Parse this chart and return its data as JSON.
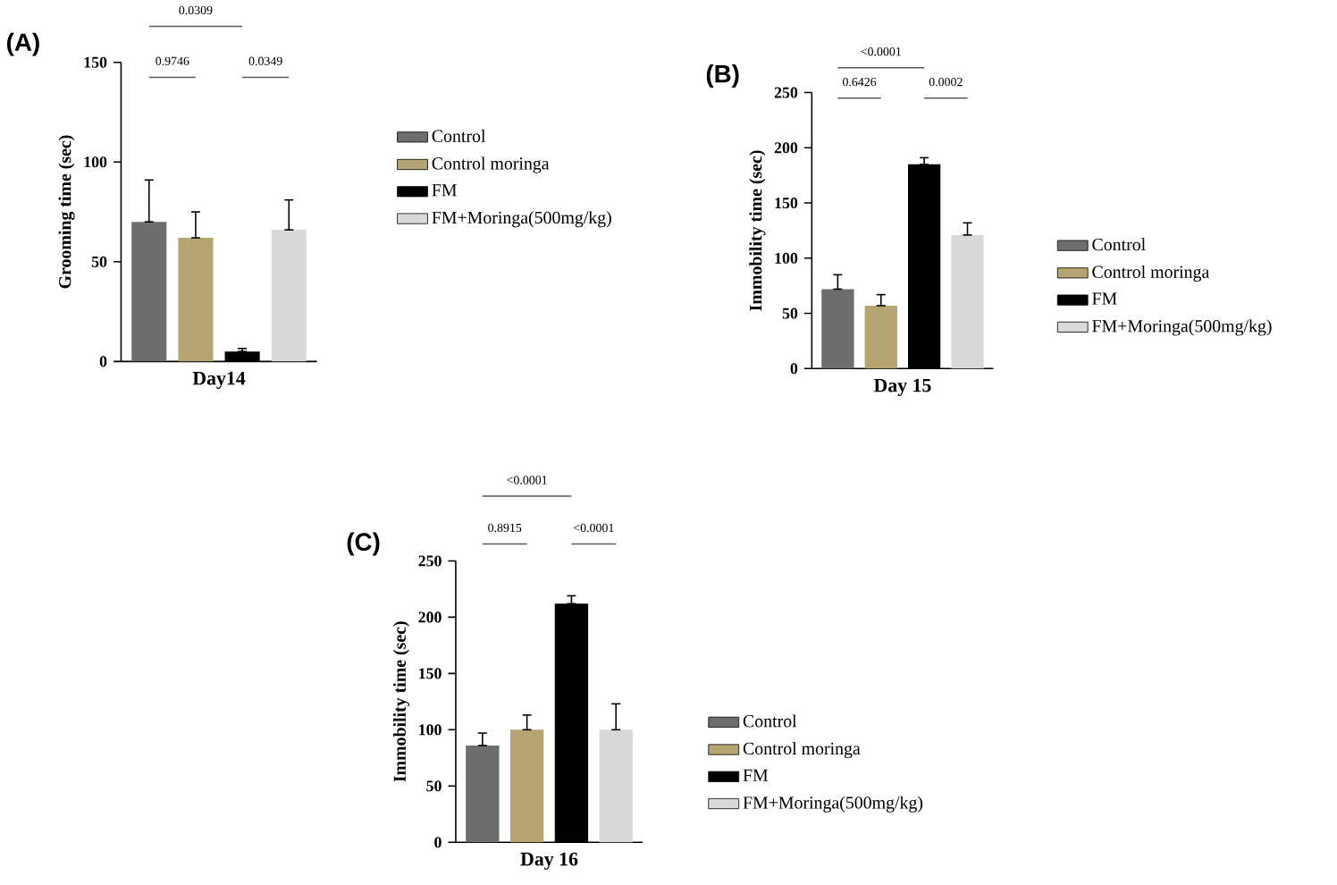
{
  "chart_data": [
    {
      "type": "bar",
      "title": "(A)",
      "xlabel": "Day14",
      "ylabel": "Grooming time (sec)",
      "categories": [
        null
      ],
      "ylim": [
        0,
        150
      ],
      "yticks": [
        0,
        50,
        100,
        150
      ],
      "legend": "right",
      "series": [
        {
          "name": "Control",
          "color": "#6d6d6d",
          "values": [
            70
          ],
          "errors": [
            [
              70,
              91
            ]
          ]
        },
        {
          "name": "Control moringa",
          "color": "#b5a575",
          "values": [
            62
          ],
          "errors": [
            [
              62,
              75
            ]
          ]
        },
        {
          "name": "FM",
          "color": "#000000",
          "values": [
            5
          ],
          "errors": [
            [
              5,
              6.5
            ]
          ]
        },
        {
          "name": "FM+Moringa(500mg/kg)",
          "color": "#d9d9d9",
          "values": [
            66
          ],
          "errors": [
            [
              66,
              81
            ]
          ]
        }
      ],
      "annotations": [
        "0.0309",
        "0.9746",
        "0.0349"
      ]
    },
    {
      "type": "bar",
      "title": "(B)",
      "xlabel": "Day 15",
      "ylabel": "Immobility time (sec)",
      "categories": [
        null
      ],
      "ylim": [
        0,
        250
      ],
      "yticks": [
        0,
        50,
        100,
        150,
        200,
        250
      ],
      "legend": "right",
      "series": [
        {
          "name": "Control",
          "color": "#6d6d6d",
          "values": [
            72
          ],
          "errors": [
            [
              72,
              85
            ]
          ]
        },
        {
          "name": "Control moringa",
          "color": "#b5a575",
          "values": [
            57
          ],
          "errors": [
            [
              57,
              67
            ]
          ]
        },
        {
          "name": "FM",
          "color": "#000000",
          "values": [
            185
          ],
          "errors": [
            [
              185,
              191
            ]
          ]
        },
        {
          "name": "FM+Moringa(500mg/kg)",
          "color": "#d9d9d9",
          "values": [
            121
          ],
          "errors": [
            [
              121,
              132
            ]
          ]
        }
      ],
      "annotations": [
        "<0.0001",
        "0.6426",
        "0.0002"
      ]
    },
    {
      "type": "bar",
      "title": "(C)",
      "xlabel": "Day 16",
      "ylabel": "Immobility time (sec)",
      "categories": [
        null
      ],
      "ylim": [
        0,
        250
      ],
      "yticks": [
        0,
        50,
        100,
        150,
        200,
        250
      ],
      "legend": "right",
      "series": [
        {
          "name": "Control",
          "color": "#6d6d6d",
          "values": [
            86
          ],
          "errors": [
            [
              86,
              97
            ]
          ]
        },
        {
          "name": "Control moringa",
          "color": "#b5a575",
          "values": [
            100
          ],
          "errors": [
            [
              100,
              113
            ]
          ]
        },
        {
          "name": "FM",
          "color": "#000000",
          "values": [
            212
          ],
          "errors": [
            [
              212,
              219
            ]
          ]
        },
        {
          "name": "FM+Moringa(500mg/kg)",
          "color": "#d9d9d9",
          "values": [
            100
          ],
          "errors": [
            [
              100,
              123
            ]
          ]
        }
      ],
      "annotations": [
        "<0.0001",
        "0.8915",
        "<0.0001"
      ]
    }
  ]
}
